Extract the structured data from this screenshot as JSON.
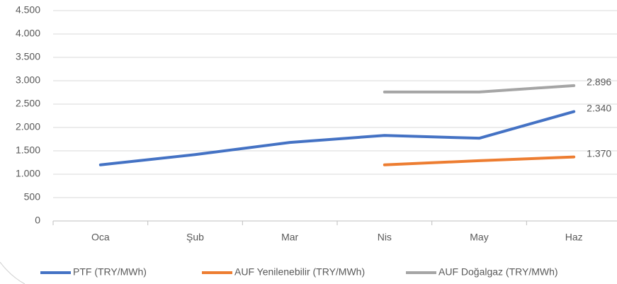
{
  "chart_data": {
    "type": "line",
    "categories": [
      "Oca",
      "Şub",
      "Mar",
      "Nis",
      "May",
      "Haz"
    ],
    "series": [
      {
        "name": "PTF (TRY/MWh)",
        "color": "#4472c4",
        "values": [
          1200,
          1420,
          1680,
          1830,
          1770,
          2340
        ],
        "value_labels": [
          null,
          null,
          null,
          null,
          null,
          "2.340"
        ]
      },
      {
        "name": "AUF Yenilenebilir (TRY/MWh)",
        "color": "#ed7d31",
        "values": [
          null,
          null,
          null,
          1200,
          1290,
          1370
        ],
        "value_labels": [
          null,
          null,
          null,
          null,
          null,
          "1.370"
        ]
      },
      {
        "name": "AUF Doğalgaz (TRY/MWh)",
        "color": "#a5a5a5",
        "values": [
          null,
          null,
          null,
          2760,
          2760,
          2896
        ],
        "value_labels": [
          null,
          null,
          null,
          null,
          null,
          "2.896"
        ]
      }
    ],
    "ylim": [
      0,
      4500
    ],
    "yticks": [
      0,
      500,
      {
        "value": 1000,
        "label": "1.000"
      },
      {
        "value": 1500,
        "label": "1.500"
      },
      {
        "value": 2000,
        "label": "2.000"
      },
      {
        "value": 2500,
        "label": "2.500"
      },
      {
        "value": 3000,
        "label": "3.000"
      },
      {
        "value": 3500,
        "label": "3.500"
      },
      {
        "value": 4000,
        "label": "4.000"
      },
      {
        "value": 4500,
        "label": "4.500"
      }
    ],
    "grid": true,
    "legend": "bottom"
  }
}
